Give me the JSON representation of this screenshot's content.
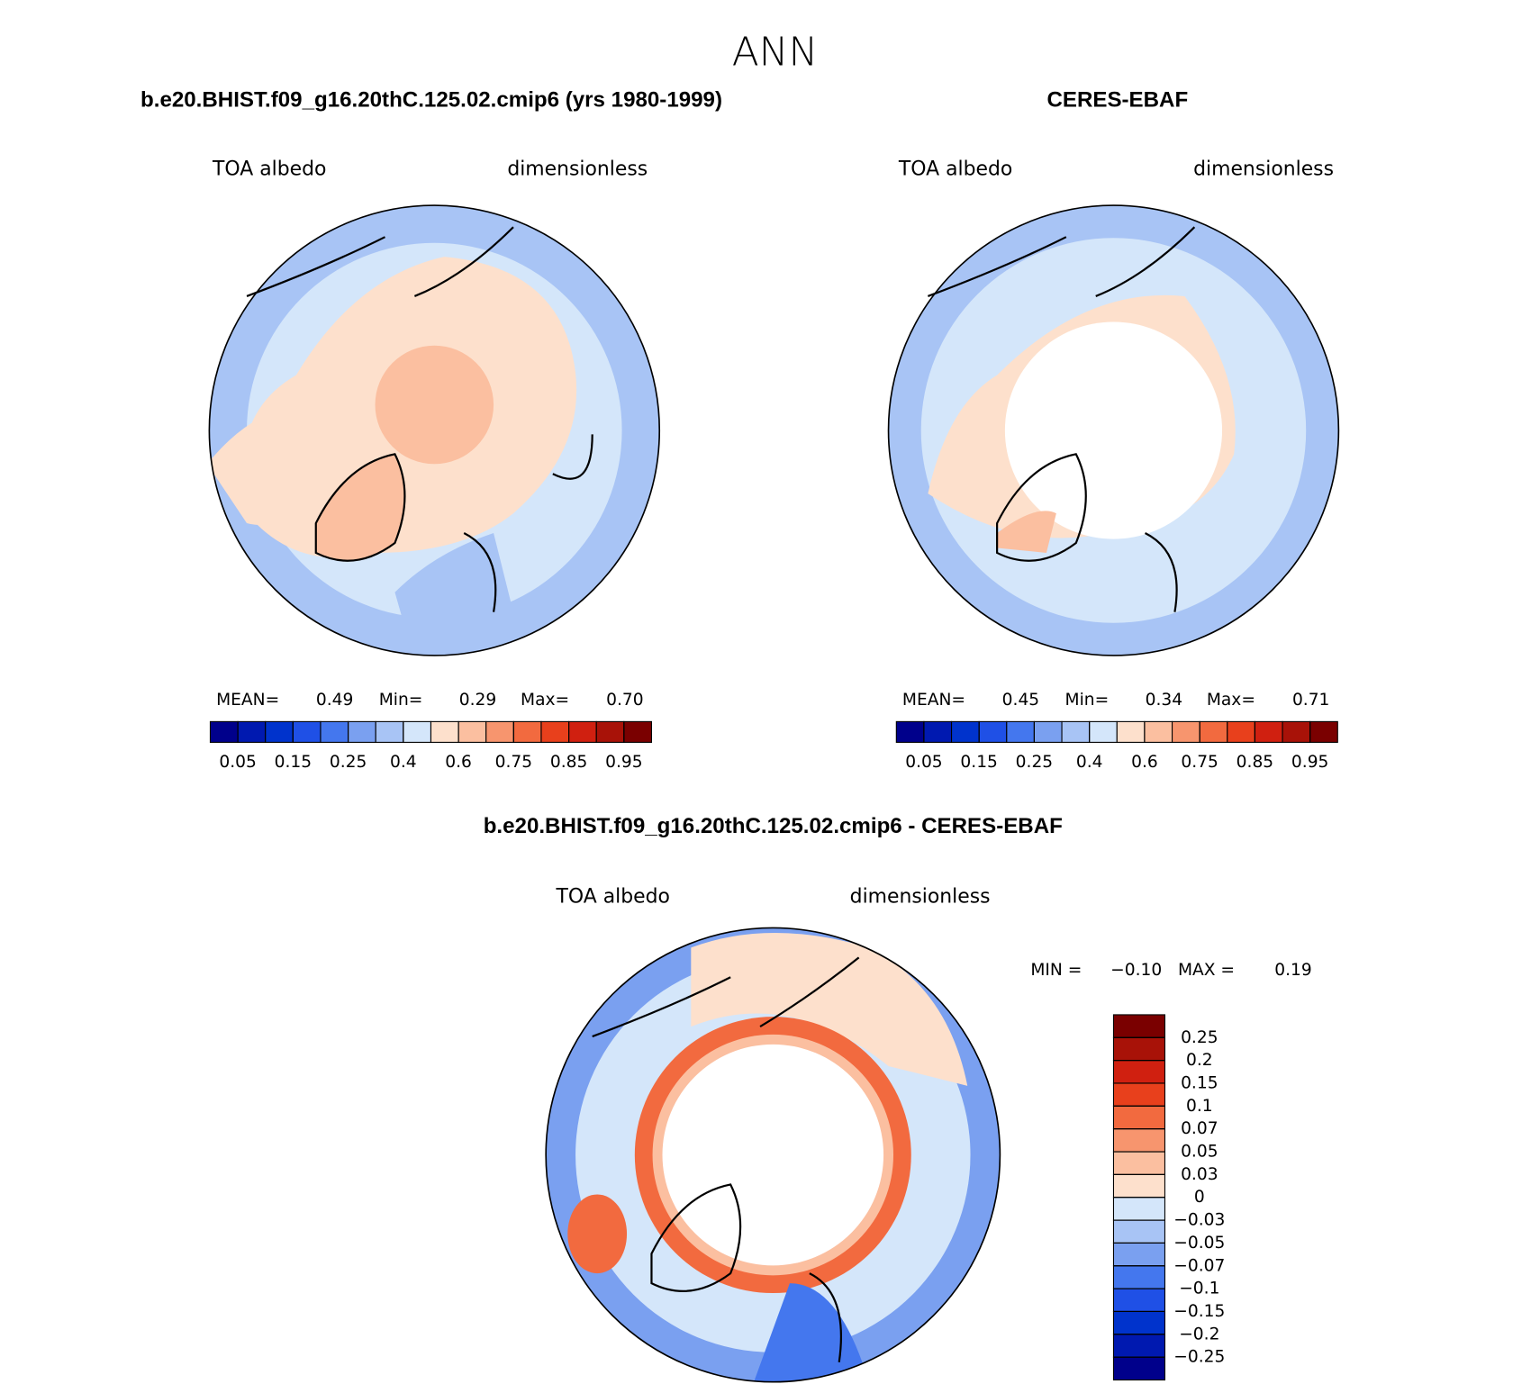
{
  "title": "ANN",
  "panels": [
    {
      "title": "b.e20.BHIST.f09_g16.20thC.125.02.cmip6 (yrs 1980-1999)",
      "left_label": "TOA albedo",
      "right_label": "dimensionless",
      "stats": {
        "names": [
          "MEAN=",
          "Min=",
          "Max="
        ],
        "values": [
          0.49,
          0.29,
          0.7
        ],
        "value_labels": [
          "0.49",
          "0.29",
          "0.70"
        ]
      },
      "colorbar": {
        "levels": [
          0.05,
          0.15,
          0.25,
          0.4,
          0.6,
          0.75,
          0.85,
          0.95
        ],
        "colors": [
          "#00008b",
          "#0019b0",
          "#0033cc",
          "#1f50e6",
          "#4477ee",
          "#7aa0f0",
          "#a8c4f5",
          "#d4e6fa",
          "#fde0cc",
          "#fbbfa0",
          "#f7956e",
          "#f26a3f",
          "#e8401c",
          "#d02010",
          "#a81208",
          "#7a0000"
        ]
      }
    },
    {
      "title": "CERES-EBAF",
      "left_label": "TOA albedo",
      "right_label": "dimensionless",
      "stats": {
        "names": [
          "MEAN=",
          "Min=",
          "Max="
        ],
        "values": [
          0.45,
          0.34,
          0.71
        ],
        "value_labels": [
          "0.45",
          "0.34",
          "0.71"
        ]
      },
      "colorbar": {
        "levels": [
          0.05,
          0.15,
          0.25,
          0.4,
          0.6,
          0.75,
          0.85,
          0.95
        ],
        "colors": [
          "#00008b",
          "#0019b0",
          "#0033cc",
          "#1f50e6",
          "#4477ee",
          "#7aa0f0",
          "#a8c4f5",
          "#d4e6fa",
          "#fde0cc",
          "#fbbfa0",
          "#f7956e",
          "#f26a3f",
          "#e8401c",
          "#d02010",
          "#a81208",
          "#7a0000"
        ]
      }
    }
  ],
  "difference": {
    "title": "b.e20.BHIST.f09_g16.20thC.125.02.cmip6 - CERES-EBAF",
    "left_label": "TOA albedo",
    "right_label": "dimensionless",
    "stats": {
      "names": [
        "MIN =",
        "MAX ="
      ],
      "values": [
        -0.1,
        0.19
      ],
      "value_labels": [
        "−0.10",
        "0.19"
      ]
    },
    "colorbar": {
      "levels": [
        0.25,
        0.2,
        0.15,
        0.1,
        0.07,
        0.05,
        0.03,
        0,
        {
          "value": -0.03,
          "label": "−0.03"
        },
        {
          "value": -0.05,
          "label": "−0.05"
        },
        {
          "value": -0.07,
          "label": "−0.07"
        },
        {
          "value": -0.1,
          "label": "−0.1"
        },
        {
          "value": -0.15,
          "label": "−0.15"
        },
        {
          "value": -0.2,
          "label": "−0.2"
        },
        {
          "value": -0.25,
          "label": "−0.25"
        }
      ],
      "colors": [
        "#7a0000",
        "#a81208",
        "#d02010",
        "#e8401c",
        "#f26a3f",
        "#f7956e",
        "#fbbfa0",
        "#fde0cc",
        "#d4e6fa",
        "#a8c4f5",
        "#7aa0f0",
        "#4477ee",
        "#1f50e6",
        "#0033cc",
        "#0019b0",
        "#00008b"
      ]
    }
  }
}
